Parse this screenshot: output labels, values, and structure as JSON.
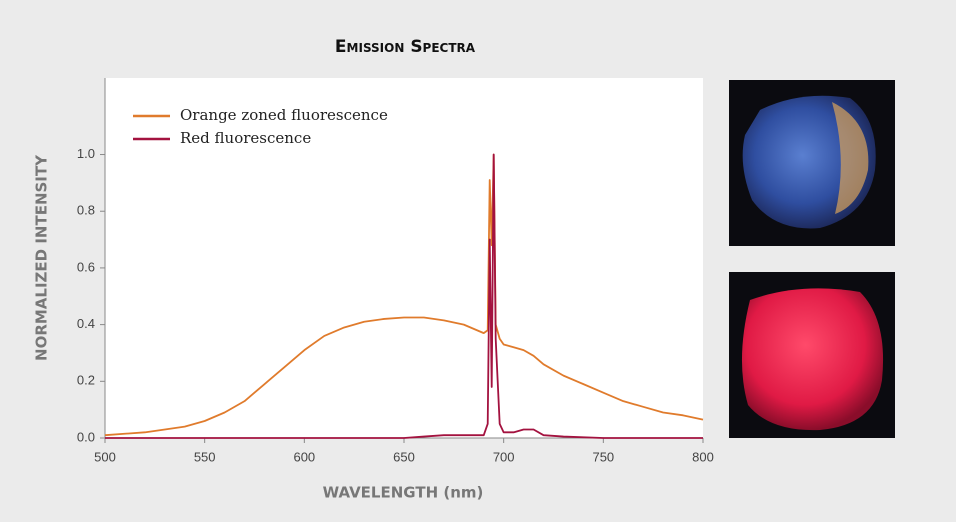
{
  "chart_data": {
    "type": "line",
    "title": "Emission Spectra",
    "x_label": "WAVELENGTH (nm)",
    "y_label": "NORMALIZED INTENSITY",
    "xlim": [
      500,
      800
    ],
    "ylim": [
      0,
      1.27
    ],
    "xticks": [
      500,
      550,
      600,
      650,
      700,
      750,
      800
    ],
    "yticks": [
      {
        "value": 0,
        "label": "0.0"
      },
      0.2,
      0.4,
      0.6,
      0.8,
      {
        "value": 1,
        "label": "1.0"
      }
    ],
    "legend": "top-left",
    "series": [
      {
        "name": "Orange zoned fluorescence",
        "color": "#e07b2c",
        "x": [
          500,
          520,
          540,
          550,
          560,
          570,
          580,
          590,
          600,
          610,
          620,
          630,
          640,
          650,
          660,
          670,
          680,
          690,
          692,
          693,
          694,
          695,
          696,
          698,
          700,
          705,
          710,
          715,
          720,
          730,
          740,
          750,
          760,
          770,
          780,
          790,
          800
        ],
        "values": [
          0.01,
          0.02,
          0.04,
          0.06,
          0.09,
          0.13,
          0.19,
          0.25,
          0.31,
          0.36,
          0.39,
          0.41,
          0.42,
          0.425,
          0.425,
          0.415,
          0.4,
          0.37,
          0.38,
          0.91,
          0.68,
          1.0,
          0.4,
          0.35,
          0.33,
          0.32,
          0.31,
          0.29,
          0.26,
          0.22,
          0.19,
          0.16,
          0.13,
          0.11,
          0.09,
          0.08,
          0.065
        ]
      },
      {
        "name": "Red fluorescence",
        "color": "#a3123f",
        "x": [
          500,
          600,
          650,
          660,
          670,
          680,
          690,
          692,
          693,
          694,
          695,
          696,
          698,
          700,
          705,
          710,
          715,
          720,
          730,
          750,
          800
        ],
        "values": [
          0,
          0,
          0,
          0.005,
          0.01,
          0.01,
          0.01,
          0.05,
          0.7,
          0.18,
          1.0,
          0.35,
          0.05,
          0.02,
          0.02,
          0.03,
          0.03,
          0.01,
          0.005,
          0,
          0
        ]
      }
    ]
  }
}
